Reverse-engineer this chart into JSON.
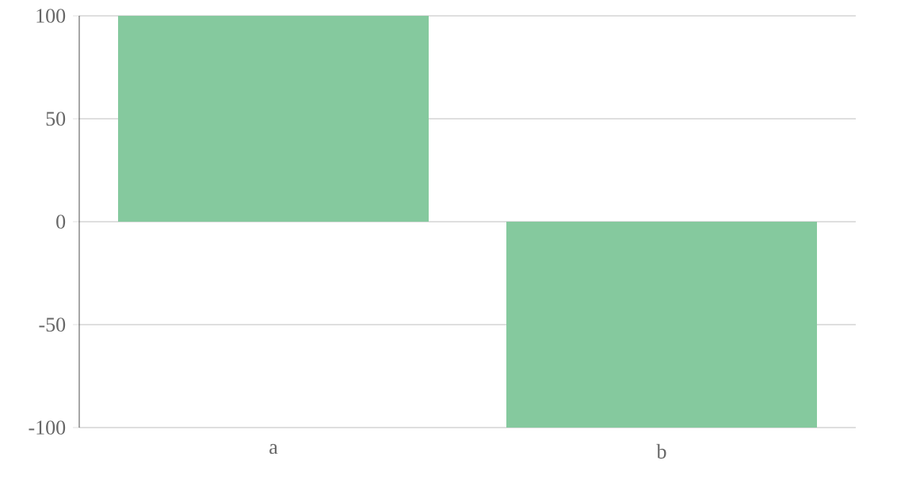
{
  "chart_data": {
    "type": "bar",
    "categories": [
      "a",
      "b"
    ],
    "values": [
      100,
      -100
    ],
    "color": "#85c99e",
    "ylim": [
      -100,
      100
    ],
    "yticks": [
      -100,
      -50,
      0,
      50,
      100
    ],
    "grid": "y"
  }
}
